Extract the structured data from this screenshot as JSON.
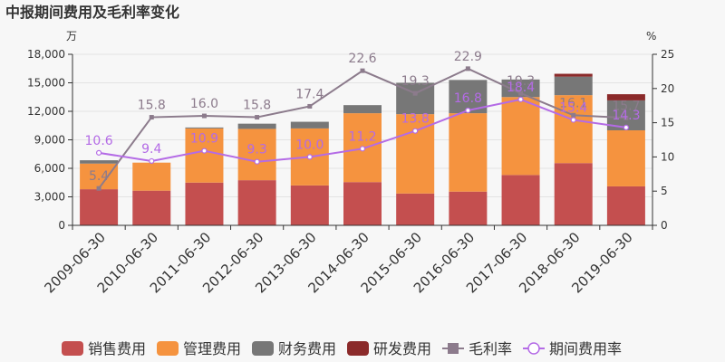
{
  "title": "中报期间费用及毛利率变化",
  "left_unit": "万",
  "right_unit": "%",
  "chart_data": {
    "type": "bar",
    "stacked": true,
    "categories": [
      "2009-06-30",
      "2010-06-30",
      "2011-06-30",
      "2012-06-30",
      "2013-06-30",
      "2014-06-30",
      "2015-06-30",
      "2016-06-30",
      "2017-06-30",
      "2018-06-30",
      "2019-06-30"
    ],
    "y_left": {
      "min": 0,
      "max": 18000,
      "ticks": [
        "0",
        "3,000",
        "6,000",
        "9,000",
        "12,000",
        "15,000",
        "18,000"
      ],
      "tick_values": [
        0,
        3000,
        6000,
        9000,
        12000,
        15000,
        18000
      ]
    },
    "y_right": {
      "min": 0,
      "max": 25,
      "ticks": [
        "0",
        "5",
        "10",
        "15",
        "20",
        "25"
      ],
      "tick_values": [
        0,
        5,
        10,
        15,
        20,
        25
      ]
    },
    "bar_series": [
      {
        "name": "销售费用",
        "color": "#c44f4f",
        "values": [
          3800,
          3650,
          4500,
          4750,
          4200,
          4550,
          3350,
          3550,
          5300,
          6550,
          4100
        ]
      },
      {
        "name": "管理费用",
        "color": "#f5933f",
        "values": [
          2700,
          2950,
          5700,
          5400,
          6000,
          7250,
          8350,
          8250,
          8200,
          7150,
          5900
        ]
      },
      {
        "name": "财务费用",
        "color": "#777777",
        "values": [
          350,
          0,
          100,
          550,
          700,
          850,
          3300,
          3500,
          1850,
          1950,
          3150
        ]
      },
      {
        "name": "研发费用",
        "color": "#8b2a2a",
        "values": [
          0,
          0,
          0,
          0,
          0,
          0,
          0,
          0,
          0,
          300,
          650
        ]
      }
    ],
    "line_series": [
      {
        "name": "毛利率",
        "color": "#8c7b8c",
        "marker": "square",
        "values": [
          5.4,
          15.8,
          16.0,
          15.8,
          17.4,
          22.6,
          19.3,
          22.9,
          19.3,
          16.1,
          15.7
        ],
        "labels": [
          "5.4",
          "15.8",
          "16.0",
          "15.8",
          "17.4",
          "22.6",
          "19.3",
          "22.9",
          "19.3",
          "16.1",
          "15.7"
        ]
      },
      {
        "name": "期间费用率",
        "color": "#b46be6",
        "marker": "circle",
        "values": [
          10.6,
          9.4,
          10.9,
          9.3,
          10.0,
          11.2,
          13.8,
          16.8,
          18.4,
          15.4,
          14.3
        ],
        "labels": [
          "10.6",
          "9.4",
          "10.9",
          "9.3",
          "10.0",
          "11.2",
          "13.8",
          "16.8",
          "18.4",
          "15.4",
          "14.3"
        ]
      }
    ],
    "legend": {
      "position": "bottom"
    },
    "grid": "horizontal"
  }
}
